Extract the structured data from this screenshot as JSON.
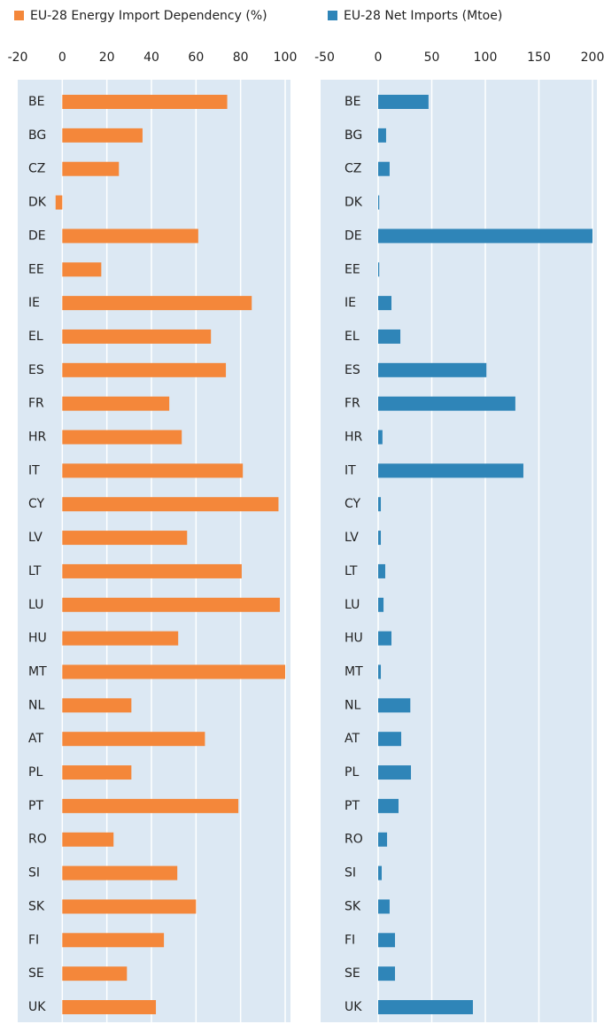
{
  "chart_data": [
    {
      "type": "bar",
      "orientation": "horizontal",
      "categories": [
        "BE",
        "BG",
        "CZ",
        "DK",
        "DE",
        "EE",
        "IE",
        "EL",
        "ES",
        "FR",
        "HR",
        "IT",
        "CY",
        "LV",
        "LT",
        "LU",
        "HU",
        "MT",
        "NL",
        "AT",
        "PL",
        "PT",
        "RO",
        "SI",
        "SK",
        "FI",
        "SE",
        "UK"
      ],
      "series": [
        {
          "name": "EU-28 Energy Import Dependency (%)",
          "color": "#f4873a",
          "values": [
            74,
            36,
            25.4,
            -3,
            61,
            17.5,
            85,
            66.7,
            73.4,
            48,
            53.6,
            81,
            97,
            56,
            80.5,
            97.6,
            52,
            100,
            31,
            64,
            31,
            79,
            23,
            51.6,
            60,
            45.6,
            29,
            42
          ]
        }
      ],
      "xlim": [
        -20,
        100
      ],
      "xticks": [
        -20,
        0,
        20,
        40,
        60,
        80,
        100
      ],
      "grid": true
    },
    {
      "type": "bar",
      "orientation": "horizontal",
      "categories": [
        "BE",
        "BG",
        "CZ",
        "DK",
        "DE",
        "EE",
        "IE",
        "EL",
        "ES",
        "FR",
        "HR",
        "IT",
        "CY",
        "LV",
        "LT",
        "LU",
        "HU",
        "MT",
        "NL",
        "AT",
        "PL",
        "PT",
        "RO",
        "SI",
        "SK",
        "FI",
        "SE",
        "UK"
      ],
      "series": [
        {
          "name": "EU-28 Net Imports (Mtoe)",
          "color": "#2f85b8",
          "values": [
            47,
            7.4,
            10.7,
            1,
            200,
            1,
            12.4,
            20.7,
            101,
            128,
            4,
            135.5,
            2.5,
            2.5,
            6.6,
            5,
            12.4,
            2.5,
            30,
            21.5,
            30.6,
            19,
            8.3,
            3.3,
            10.7,
            15.7,
            15.7,
            88.4
          ]
        }
      ],
      "xlim": [
        -50,
        200
      ],
      "xticks": [
        -50,
        0,
        50,
        100,
        150,
        200
      ],
      "grid": true
    }
  ]
}
